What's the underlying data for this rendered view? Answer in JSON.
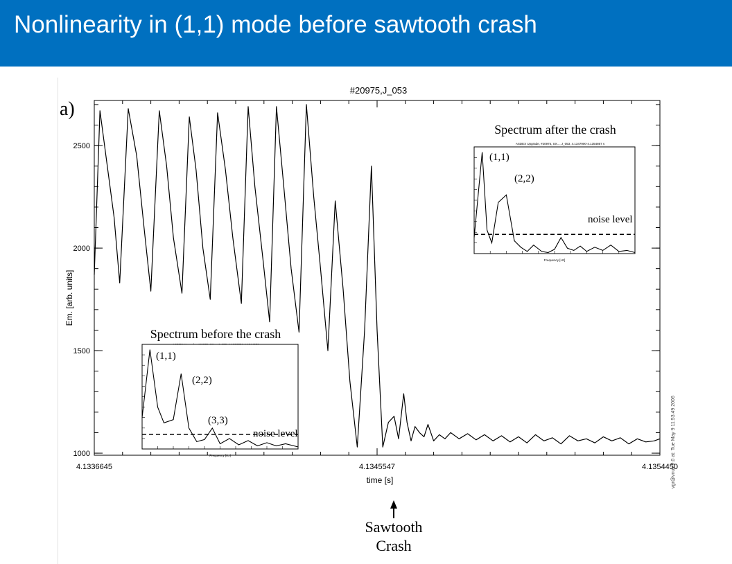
{
  "header": {
    "title": "Nonlinearity in (1,1) mode before sawtooth crash"
  },
  "colors": {
    "header_bg": "#0070c0",
    "header_text": "#ffffff",
    "trace": "#000000"
  },
  "chart_data": [
    {
      "type": "line",
      "panel_label": "a)",
      "title": "#20975,J_053",
      "xlabel": "time [s]",
      "ylabel": "Em. [arb. units]",
      "x_tick_labels": [
        "4.1336645",
        "4.1345547",
        "4.1354450"
      ],
      "y_ticks": [
        1000,
        1500,
        2000,
        2500
      ],
      "ylim": [
        990,
        2720
      ],
      "xlim": [
        0,
        1
      ],
      "grid": false,
      "series": [
        {
          "x": [
            0,
            0.01,
            0.022,
            0.035,
            0.045,
            0.06,
            0.075,
            0.088,
            0.1,
            0.115,
            0.128,
            0.14,
            0.155,
            0.168,
            0.18,
            0.192,
            0.205,
            0.218,
            0.232,
            0.245,
            0.26,
            0.272,
            0.284,
            0.298,
            0.31,
            0.322,
            0.335,
            0.348,
            0.362,
            0.375,
            0.388,
            0.4,
            0.413,
            0.426,
            0.44,
            0.452,
            0.465,
            0.478,
            0.49,
            0.5,
            0.51,
            0.52,
            0.53,
            0.538,
            0.547,
            0.553,
            0.56,
            0.567,
            0.575,
            0.583,
            0.59,
            0.6,
            0.61,
            0.62,
            0.63,
            0.645,
            0.66,
            0.675,
            0.69,
            0.705,
            0.72,
            0.735,
            0.75,
            0.765,
            0.78,
            0.795,
            0.81,
            0.825,
            0.84,
            0.855,
            0.87,
            0.885,
            0.9,
            0.915,
            0.93,
            0.945,
            0.96,
            0.975,
            0.99,
            1.0
          ],
          "y": [
            1870,
            2670,
            2420,
            2150,
            1830,
            2680,
            2450,
            2100,
            1790,
            2670,
            2400,
            2050,
            1780,
            2640,
            2380,
            2000,
            1750,
            2660,
            2380,
            2050,
            1730,
            2690,
            2300,
            1950,
            1640,
            2690,
            2300,
            1900,
            1590,
            2700,
            2250,
            1900,
            1500,
            2230,
            1800,
            1350,
            1030,
            1600,
            2400,
            1600,
            1030,
            1150,
            1180,
            1070,
            1290,
            1150,
            1060,
            1130,
            1100,
            1080,
            1140,
            1060,
            1090,
            1070,
            1100,
            1070,
            1095,
            1065,
            1090,
            1060,
            1085,
            1055,
            1080,
            1050,
            1090,
            1060,
            1075,
            1045,
            1085,
            1060,
            1070,
            1050,
            1080,
            1060,
            1075,
            1045,
            1070,
            1055,
            1060,
            1070
          ]
        }
      ],
      "arrow_annotation": "Sawtooth\nCrash",
      "side_text": "vgr@vnux.0.0 at: Tue May 9 11:53:49 2006"
    },
    {
      "type": "line",
      "title": "Spectrum after the crash",
      "subtitle": "ASDEX Upgrade, #20975, SX..., J_053, 4.1347900-4.1354867 s",
      "xlabel": "Frequency [Hz]",
      "annotations": [
        "(1,1)",
        "(2,2)",
        "noise level"
      ],
      "noise_level": 0.18,
      "series": [
        {
          "x": [
            0,
            0.05,
            0.08,
            0.11,
            0.15,
            0.2,
            0.25,
            0.29,
            0.33,
            0.37,
            0.42,
            0.46,
            0.5,
            0.54,
            0.58,
            0.62,
            0.66,
            0.7,
            0.75,
            0.8,
            0.85,
            0.9,
            0.95,
            1.0
          ],
          "y": [
            0.15,
            0.95,
            0.22,
            0.1,
            0.48,
            0.55,
            0.12,
            0.06,
            0.02,
            0.08,
            0.02,
            0.01,
            0.04,
            0.15,
            0.05,
            0.03,
            0.07,
            0.02,
            0.06,
            0.03,
            0.08,
            0.02,
            0.03,
            0.01
          ]
        }
      ]
    },
    {
      "type": "line",
      "title": "Spectrum before the crash",
      "subtitle": "ASDEX Upgrade, #20975, SX..., J_053, 4.1336751-4.1344672 s",
      "xlabel": "Frequency [Hz]",
      "annotations": [
        "(1,1)",
        "(2,2)",
        "(3,3)",
        "noise level"
      ],
      "noise_level": 0.14,
      "series": [
        {
          "x": [
            0,
            0.05,
            0.1,
            0.14,
            0.2,
            0.25,
            0.3,
            0.35,
            0.4,
            0.45,
            0.5,
            0.56,
            0.62,
            0.68,
            0.74,
            0.8,
            0.86,
            0.92,
            1.0
          ],
          "y": [
            0.3,
            0.95,
            0.4,
            0.25,
            0.28,
            0.72,
            0.2,
            0.07,
            0.09,
            0.2,
            0.05,
            0.1,
            0.04,
            0.08,
            0.03,
            0.06,
            0.03,
            0.05,
            0.02
          ]
        }
      ]
    }
  ]
}
